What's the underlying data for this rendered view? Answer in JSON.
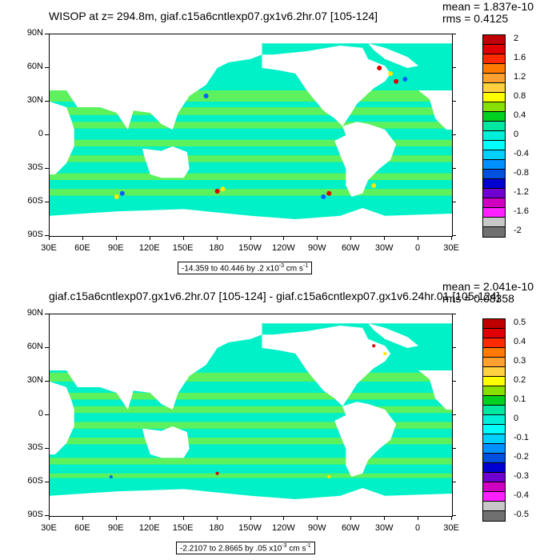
{
  "palette": {
    "ocean_main": "#00f0c8",
    "ocean_alt": "#6df24a",
    "ocean_cyan": "#00ffff",
    "land": "#ffffff",
    "accent_red": "#e00000",
    "accent_yellow": "#ffe800",
    "accent_blue": "#0060ff"
  },
  "axes": {
    "lat_labels": [
      "90N",
      "60N",
      "30N",
      "0",
      "30S",
      "60S",
      "90S"
    ],
    "lon_labels": [
      "30E",
      "60E",
      "90E",
      "120E",
      "150E",
      "180",
      "150W",
      "120W",
      "90W",
      "60W",
      "30W",
      "0",
      "30E"
    ]
  },
  "panels": [
    {
      "title": "WISOP at z= 294.8m, giaf.c15a6cntlexp07.gx1v6.2hr.07 [105-124]",
      "mean": "mean = 1.837e-10",
      "rms": "rms = 0.4125",
      "range_text": "-14.359 to 40.446 by .2 x10",
      "range_exp": "-3",
      "range_units": " cm s",
      "range_units_exp": "-1",
      "colorbar_labels": [
        "2",
        "1.6",
        "1.2",
        "0.8",
        "0.4",
        "0",
        "-0.4",
        "-0.8",
        "-1.2",
        "-1.6",
        "-2"
      ],
      "colorbar_colors": [
        "#c00000",
        "#e00000",
        "#ff2a00",
        "#ff7a00",
        "#ffa030",
        "#ffd040",
        "#ffff00",
        "#88e000",
        "#00d020",
        "#00e8a0",
        "#00f0d8",
        "#00ffff",
        "#00d0ff",
        "#0090ff",
        "#0050e0",
        "#0000d0",
        "#7000d0",
        "#d000c0",
        "#ff20ff",
        "#c8c8c8",
        "#707070"
      ]
    },
    {
      "title": "giaf.c15a6cntlexp07.gx1v6.2hr.07 [105-124] - giaf.c15a6cntlexp07.gx1v6.24hr.01 [105-124]",
      "mean": "mean = 2.041e-10",
      "rms": "rms = 0.08358",
      "range_text": "-2.2107 to 2.8665 by .05 x10",
      "range_exp": "-3",
      "range_units": " cm s",
      "range_units_exp": "-1",
      "colorbar_labels": [
        "0.5",
        "0.4",
        "0.3",
        "0.2",
        "0.1",
        "0",
        "-0.1",
        "-0.2",
        "-0.3",
        "-0.4",
        "-0.5"
      ],
      "colorbar_colors": [
        "#c00000",
        "#e00000",
        "#ff2a00",
        "#ff7a00",
        "#ffa030",
        "#ffd040",
        "#ffff00",
        "#88e000",
        "#00d020",
        "#00e8a0",
        "#00f0d8",
        "#00ffff",
        "#00d0ff",
        "#0090ff",
        "#0050e0",
        "#0000d0",
        "#7000d0",
        "#d000c0",
        "#ff20ff",
        "#c8c8c8",
        "#707070"
      ]
    }
  ]
}
